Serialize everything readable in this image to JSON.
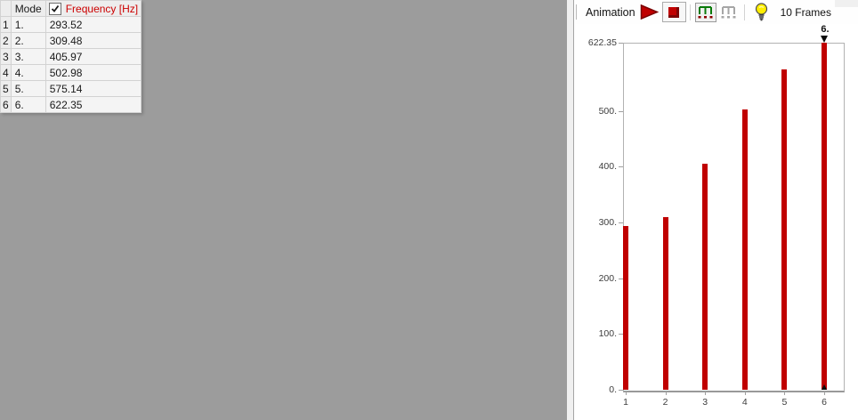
{
  "table": {
    "header": {
      "mode": "Mode",
      "frequency": "Frequency [Hz]",
      "frequency_checked": true
    },
    "rows": [
      {
        "num": "1",
        "mode": "1.",
        "frequency": "293.52"
      },
      {
        "num": "2",
        "mode": "2.",
        "frequency": "309.48"
      },
      {
        "num": "3",
        "mode": "3.",
        "frequency": "405.97"
      },
      {
        "num": "4",
        "mode": "4.",
        "frequency": "502.98"
      },
      {
        "num": "5",
        "mode": "5.",
        "frequency": "575.14"
      },
      {
        "num": "6",
        "mode": "6.",
        "frequency": "622.35"
      }
    ]
  },
  "toolbar": {
    "title": "Animation",
    "frames_label": "10 Frames",
    "icons": {
      "play": "play-icon",
      "stop": "stop-icon",
      "export_frames_active": "comb-bars-green-icon",
      "export_frames_inactive": "comb-bars-gray-icon",
      "tip": "lightbulb-icon"
    }
  },
  "colors": {
    "bar": "#c00000",
    "frequency_header_text": "#cc0000",
    "background": "#9c9c9c",
    "panel_background": "#ffffff",
    "comb_active_green": "#0a7a0a",
    "comb_dot_red": "#8b0000",
    "bulb_yellow": "#ffee00"
  },
  "chart_data": {
    "type": "bar",
    "title": "",
    "xlabel": "",
    "ylabel": "",
    "categories": [
      "1",
      "2",
      "3",
      "4",
      "5",
      "6"
    ],
    "values": [
      293.52,
      309.48,
      405.97,
      502.98,
      575.14,
      622.35
    ],
    "series_name": "Frequency [Hz]",
    "ylim": [
      0,
      622.35
    ],
    "grid": false,
    "y_ticks": [
      {
        "value": 0,
        "label": "0."
      },
      {
        "value": 100,
        "label": "100."
      },
      {
        "value": 200,
        "label": "200."
      },
      {
        "value": 300,
        "label": "300."
      },
      {
        "value": 400,
        "label": "400."
      },
      {
        "value": 500,
        "label": "500."
      },
      {
        "value": 622.35,
        "label": "622.35"
      }
    ],
    "annotation": {
      "label": "6.",
      "category_index": 5
    }
  }
}
